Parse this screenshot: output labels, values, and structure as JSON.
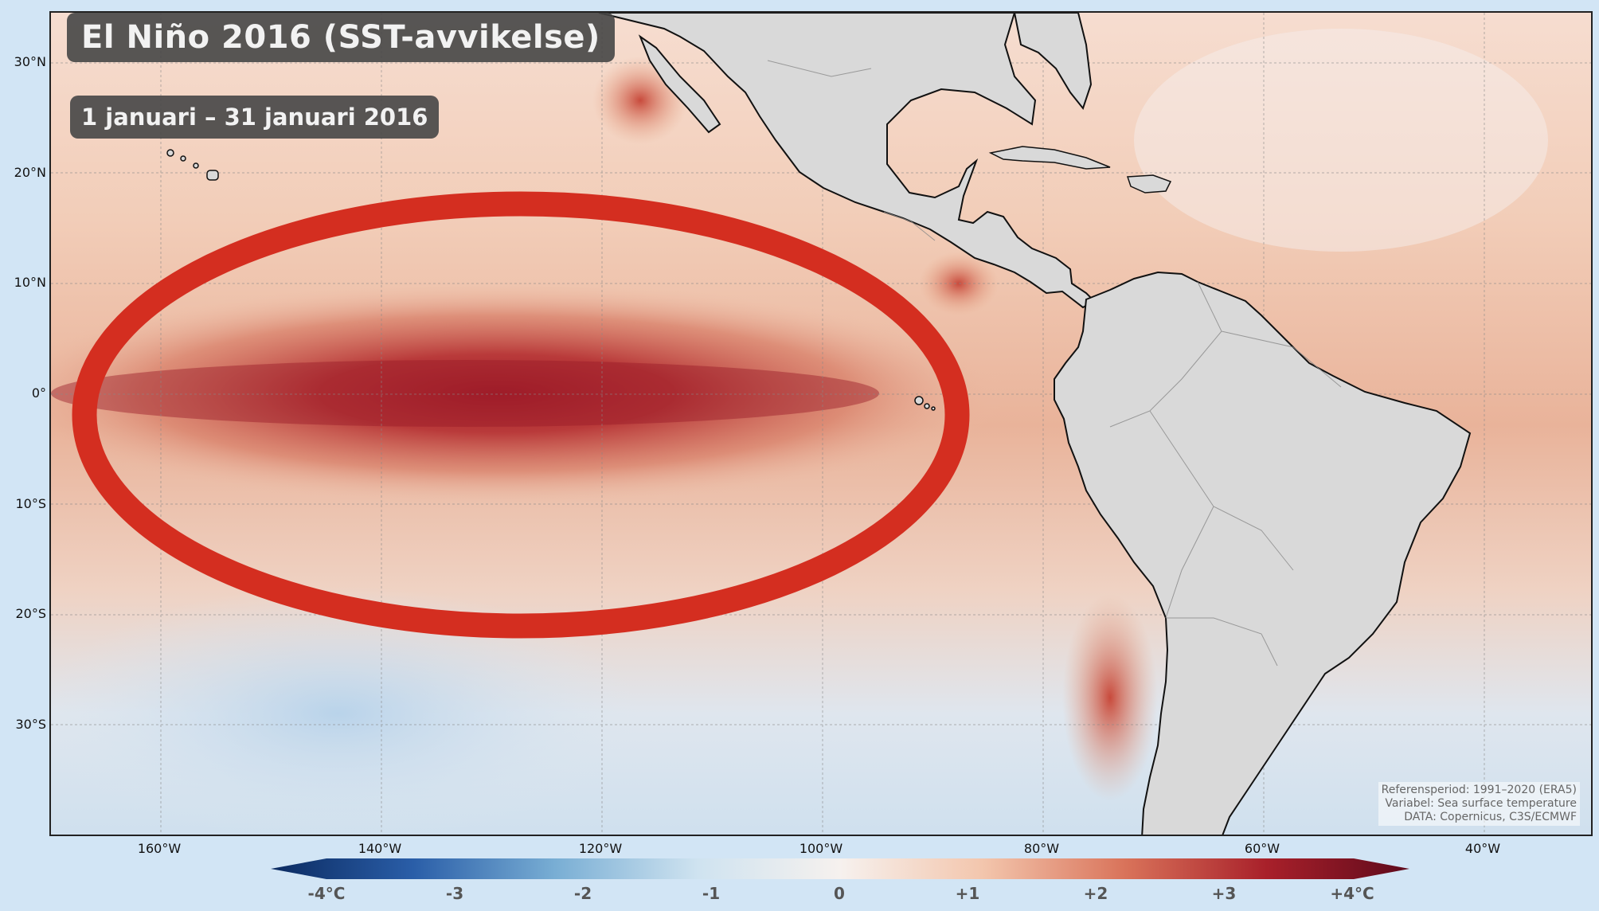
{
  "title": "El Niño 2016 (SST-avvikelse)",
  "subtitle": "1 januari – 31 januari 2016",
  "lat_ticks": [
    "30°N",
    "20°N",
    "10°N",
    "0°",
    "10°S",
    "20°S",
    "30°S"
  ],
  "lon_ticks": [
    "160°W",
    "140°W",
    "120°W",
    "100°W",
    "80°W",
    "60°W",
    "40°W"
  ],
  "colorbar": {
    "labels": [
      "-4°C",
      "-3",
      "-2",
      "-1",
      "0",
      "+1",
      "+2",
      "+3",
      "+4°C"
    ],
    "colors": [
      "#0b2a60",
      "#2a5ea8",
      "#79aed4",
      "#cfe3f0",
      "#f6f1ee",
      "#f3c6ad",
      "#d9735a",
      "#a8202a",
      "#5e0a1c"
    ]
  },
  "credits": {
    "line1": "Referensperiod: 1991–2020 (ERA5)",
    "line2": "Variabel: Sea surface temperature",
    "line3": "DATA: Copernicus, C3S/ECMWF"
  },
  "highlight_color": "#d42e20",
  "land_color": "#d9d9d9"
}
